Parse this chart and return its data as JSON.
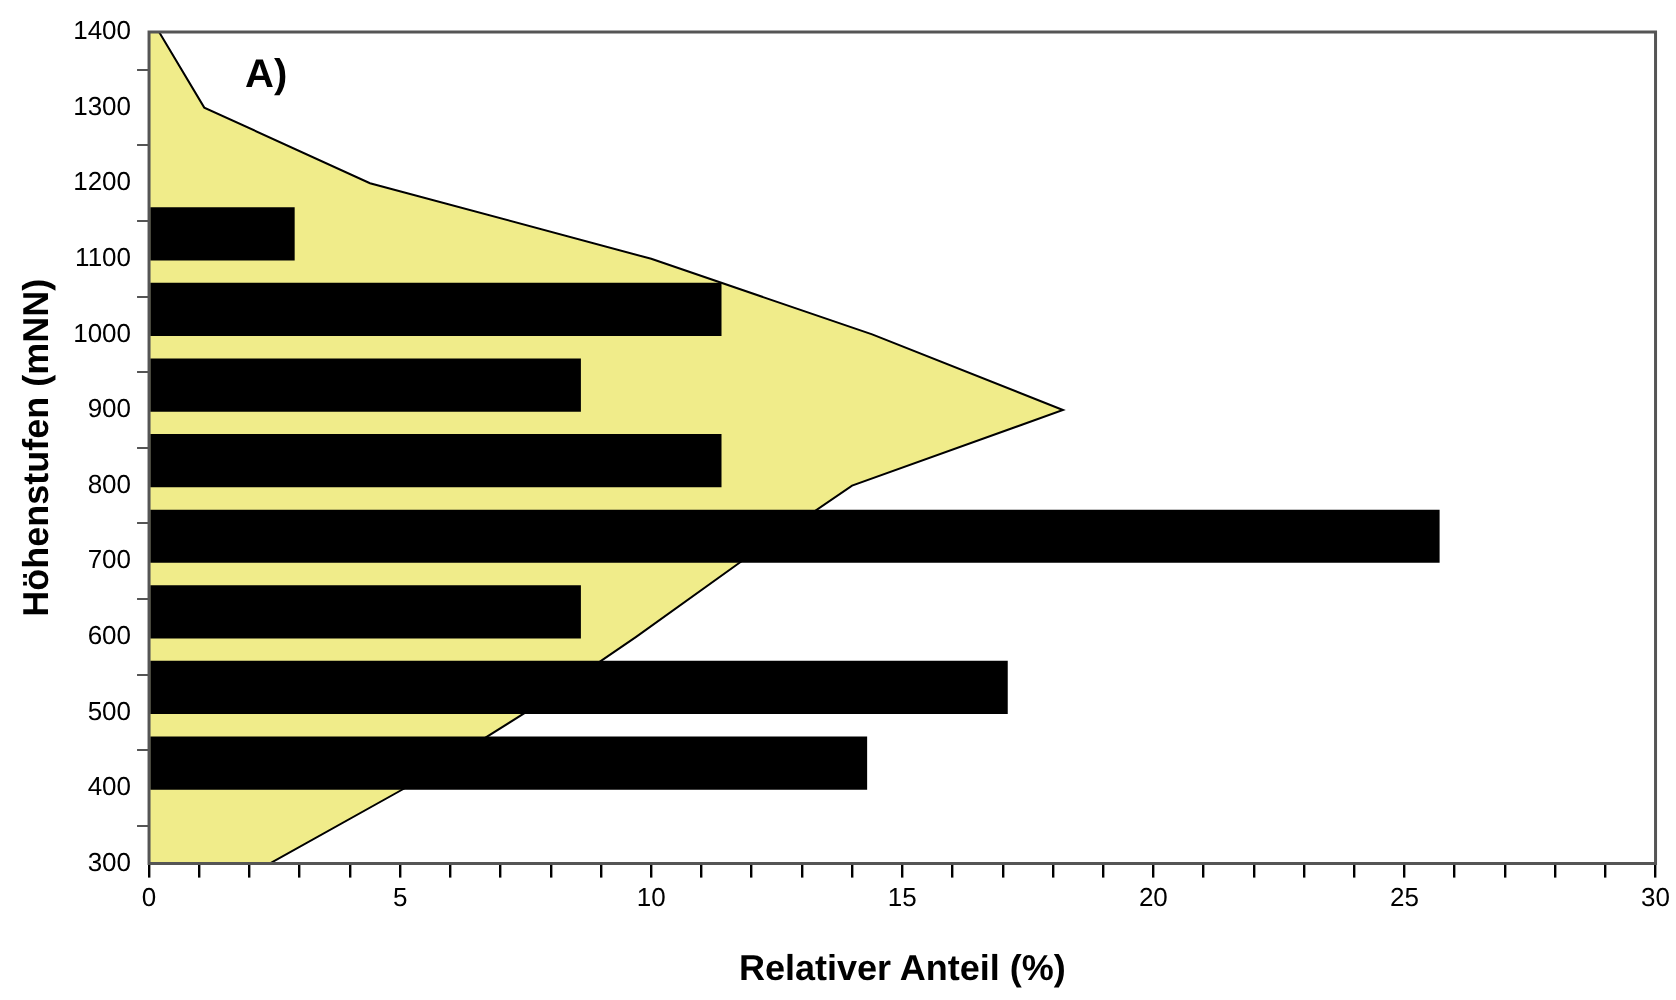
{
  "chart_data": {
    "type": "bar",
    "orientation": "horizontal",
    "xlabel": "Relativer Anteil (%)",
    "ylabel": "Höhenstufen (mNN)",
    "annotations": [
      "A)"
    ],
    "xlim": [
      0,
      30
    ],
    "ylim": [
      300,
      1400
    ],
    "xticks": [
      0,
      {
        "value": 1,
        "label": null
      },
      {
        "value": 2,
        "label": null
      },
      {
        "value": 3,
        "label": null
      },
      {
        "value": 4,
        "label": null
      },
      5,
      {
        "value": 6,
        "label": null
      },
      {
        "value": 7,
        "label": null
      },
      {
        "value": 8,
        "label": null
      },
      {
        "value": 9,
        "label": null
      },
      10,
      {
        "value": 11,
        "label": null
      },
      {
        "value": 12,
        "label": null
      },
      {
        "value": 13,
        "label": null
      },
      {
        "value": 14,
        "label": null
      },
      15,
      {
        "value": 16,
        "label": null
      },
      {
        "value": 17,
        "label": null
      },
      {
        "value": 18,
        "label": null
      },
      {
        "value": 19,
        "label": null
      },
      20,
      {
        "value": 21,
        "label": null
      },
      {
        "value": 22,
        "label": null
      },
      {
        "value": 23,
        "label": null
      },
      {
        "value": 24,
        "label": null
      },
      25,
      {
        "value": 26,
        "label": null
      },
      {
        "value": 27,
        "label": null
      },
      {
        "value": 28,
        "label": null
      },
      {
        "value": 29,
        "label": null
      },
      30
    ],
    "yticks": [
      300,
      400,
      500,
      600,
      700,
      800,
      900,
      1000,
      1100,
      1200,
      1300,
      1400
    ],
    "grid": false,
    "legend": false,
    "series": [
      {
        "type": "area",
        "color": "#f0ec8a",
        "x": [
          300,
          400,
          500,
          600,
          700,
          800,
          900,
          1000,
          1100,
          1200,
          1300,
          1400
        ],
        "values": [
          2.4,
          5.1,
          7.5,
          9.7,
          11.8,
          14.0,
          18.2,
          14.4,
          10.0,
          4.4,
          1.1,
          0.2
        ]
      },
      {
        "color": "#000000",
        "x": [
          433,
          533,
          633,
          733,
          833,
          933,
          1033,
          1133
        ],
        "values": [
          14.3,
          17.1,
          8.6,
          25.7,
          11.4,
          8.6,
          11.4,
          2.9
        ]
      }
    ]
  }
}
